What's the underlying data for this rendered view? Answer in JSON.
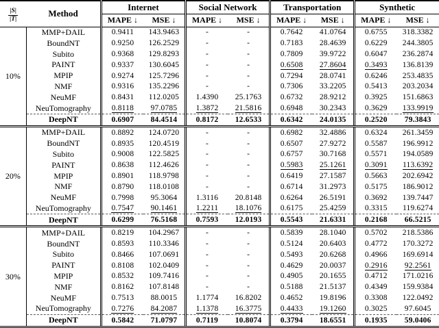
{
  "header": {
    "ratio_numerator": "|S|",
    "ratio_denominator": "|T|",
    "method_label": "Method",
    "groups": [
      {
        "label": "Internet"
      },
      {
        "label": "Social Network"
      },
      {
        "label": "Transportation"
      },
      {
        "label": "Synthetic"
      }
    ],
    "metric_labels": [
      "MAPE ↓",
      "MSE ↓"
    ]
  },
  "colors": {
    "text": "#000000",
    "background": "#ffffff",
    "dashed_rule": "#555555"
  },
  "sections": [
    {
      "ratio": "10%",
      "rows": [
        {
          "method": "MMP+DAIL",
          "bold": false,
          "underline": [],
          "values": [
            "0.9411",
            "143.9463",
            "-",
            "-",
            "0.7642",
            "41.0764",
            "0.6755",
            "318.3382"
          ]
        },
        {
          "method": "BoundNT",
          "bold": false,
          "underline": [],
          "values": [
            "0.9250",
            "126.2529",
            "-",
            "-",
            "0.7183",
            "28.4639",
            "0.6229",
            "244.3805"
          ]
        },
        {
          "method": "Subito",
          "bold": false,
          "underline": [],
          "values": [
            "0.9368",
            "129.8293",
            "-",
            "-",
            "0.7809",
            "39.9722",
            "0.6047",
            "236.2874"
          ]
        },
        {
          "method": "PAINT",
          "bold": false,
          "underline": [
            4,
            5,
            6
          ],
          "values": [
            "0.9337",
            "130.6045",
            "-",
            "-",
            "0.6508",
            "27.8604",
            "0.3493",
            "136.8139"
          ]
        },
        {
          "method": "MPIP",
          "bold": false,
          "underline": [],
          "values": [
            "0.9274",
            "125.7296",
            "-",
            "-",
            "0.7294",
            "28.0741",
            "0.6246",
            "253.4835"
          ]
        },
        {
          "method": "NMF",
          "bold": false,
          "underline": [],
          "values": [
            "0.9316",
            "135.2296",
            "-",
            "-",
            "0.7306",
            "33.2205",
            "0.5413",
            "203.2034"
          ]
        },
        {
          "method": "NeuMF",
          "bold": false,
          "underline": [],
          "values": [
            "0.8431",
            "112.0205",
            "1.4390",
            "25.1763",
            "0.6732",
            "28.9212",
            "0.3925",
            "151.6863"
          ]
        },
        {
          "method": "NeuTomography",
          "bold": false,
          "underline": [
            0,
            1,
            2,
            3,
            7
          ],
          "values": [
            "0.8118",
            "97.0785",
            "1.3872",
            "21.5816",
            "0.6948",
            "30.2343",
            "0.3629",
            "133.9919"
          ]
        },
        {
          "method": "DeepNT",
          "bold": true,
          "underline": [],
          "values": [
            "0.6907",
            "84.4514",
            "0.8172",
            "12.6533",
            "0.6342",
            "24.0135",
            "0.2520",
            "79.3843"
          ]
        }
      ]
    },
    {
      "ratio": "20%",
      "rows": [
        {
          "method": "MMP+DAIL",
          "bold": false,
          "underline": [],
          "values": [
            "0.8892",
            "124.0720",
            "-",
            "-",
            "0.6982",
            "32.4886",
            "0.6324",
            "261.3459"
          ]
        },
        {
          "method": "BoundNT",
          "bold": false,
          "underline": [],
          "values": [
            "0.8935",
            "120.4519",
            "-",
            "-",
            "0.6507",
            "27.9272",
            "0.5587",
            "196.9912"
          ]
        },
        {
          "method": "Subito",
          "bold": false,
          "underline": [],
          "values": [
            "0.9008",
            "122.5825",
            "-",
            "-",
            "0.6757",
            "30.7168",
            "0.5571",
            "194.0589"
          ]
        },
        {
          "method": "PAINT",
          "bold": false,
          "underline": [
            4,
            5,
            6,
            7
          ],
          "values": [
            "0.8638",
            "112.4626",
            "-",
            "-",
            "0.5983",
            "25.1261",
            "0.3091",
            "113.6392"
          ]
        },
        {
          "method": "MPIP",
          "bold": false,
          "underline": [],
          "values": [
            "0.8901",
            "118.9798",
            "-",
            "-",
            "0.6419",
            "27.1587",
            "0.5663",
            "202.6942"
          ]
        },
        {
          "method": "NMF",
          "bold": false,
          "underline": [],
          "values": [
            "0.8790",
            "118.0108",
            "-",
            "-",
            "0.6714",
            "31.2973",
            "0.5175",
            "186.9012"
          ]
        },
        {
          "method": "NeuMF",
          "bold": false,
          "underline": [],
          "values": [
            "0.7998",
            "95.3064",
            "1.3116",
            "20.8148",
            "0.6264",
            "26.5191",
            "0.3692",
            "139.7447"
          ]
        },
        {
          "method": "NeuTomography",
          "bold": false,
          "underline": [
            0,
            1,
            2,
            3
          ],
          "values": [
            "0.7547",
            "90.1461",
            "1.2211",
            "18.1076",
            "0.6175",
            "25.4259",
            "0.3315",
            "119.6274"
          ]
        },
        {
          "method": "DeepNT",
          "bold": true,
          "underline": [],
          "values": [
            "0.6299",
            "76.5168",
            "0.7593",
            "12.0193",
            "0.5543",
            "21.6331",
            "0.2168",
            "66.5215"
          ]
        }
      ]
    },
    {
      "ratio": "30%",
      "rows": [
        {
          "method": "MMP+DAIL",
          "bold": false,
          "underline": [],
          "values": [
            "0.8219",
            "104.2967",
            "-",
            "-",
            "0.5839",
            "28.1040",
            "0.5702",
            "218.5386"
          ]
        },
        {
          "method": "BoundNT",
          "bold": false,
          "underline": [],
          "values": [
            "0.8593",
            "110.3346",
            "-",
            "-",
            "0.5124",
            "20.6403",
            "0.4772",
            "170.3272"
          ]
        },
        {
          "method": "Subito",
          "bold": false,
          "underline": [],
          "values": [
            "0.8466",
            "107.0691",
            "-",
            "-",
            "0.5493",
            "20.6268",
            "0.4966",
            "169.6914"
          ]
        },
        {
          "method": "PAINT",
          "bold": false,
          "underline": [
            6,
            7
          ],
          "values": [
            "0.8108",
            "102.0409",
            "-",
            "-",
            "0.4629",
            "20.0037",
            "0.2916",
            "92.2561"
          ]
        },
        {
          "method": "MPIP",
          "bold": false,
          "underline": [],
          "values": [
            "0.8532",
            "109.7416",
            "-",
            "-",
            "0.4905",
            "20.1655",
            "0.4712",
            "171.0216"
          ]
        },
        {
          "method": "NMF",
          "bold": false,
          "underline": [],
          "values": [
            "0.8162",
            "107.8148",
            "-",
            "-",
            "0.5188",
            "21.5137",
            "0.4349",
            "159.9384"
          ]
        },
        {
          "method": "NeuMF",
          "bold": false,
          "underline": [],
          "values": [
            "0.7513",
            "88.0015",
            "1.1774",
            "16.8202",
            "0.4652",
            "19.8196",
            "0.3308",
            "122.0492"
          ]
        },
        {
          "method": "NeuTomography",
          "bold": false,
          "underline": [
            0,
            1,
            2,
            3,
            4,
            5
          ],
          "values": [
            "0.7276",
            "84.2087",
            "1.1378",
            "16.3775",
            "0.4433",
            "19.1260",
            "0.3025",
            "97.6045"
          ]
        },
        {
          "method": "DeepNT",
          "bold": true,
          "underline": [],
          "values": [
            "0.5842",
            "71.0797",
            "0.7119",
            "10.8074",
            "0.3794",
            "18.6551",
            "0.1935",
            "59.0406"
          ]
        }
      ]
    }
  ]
}
